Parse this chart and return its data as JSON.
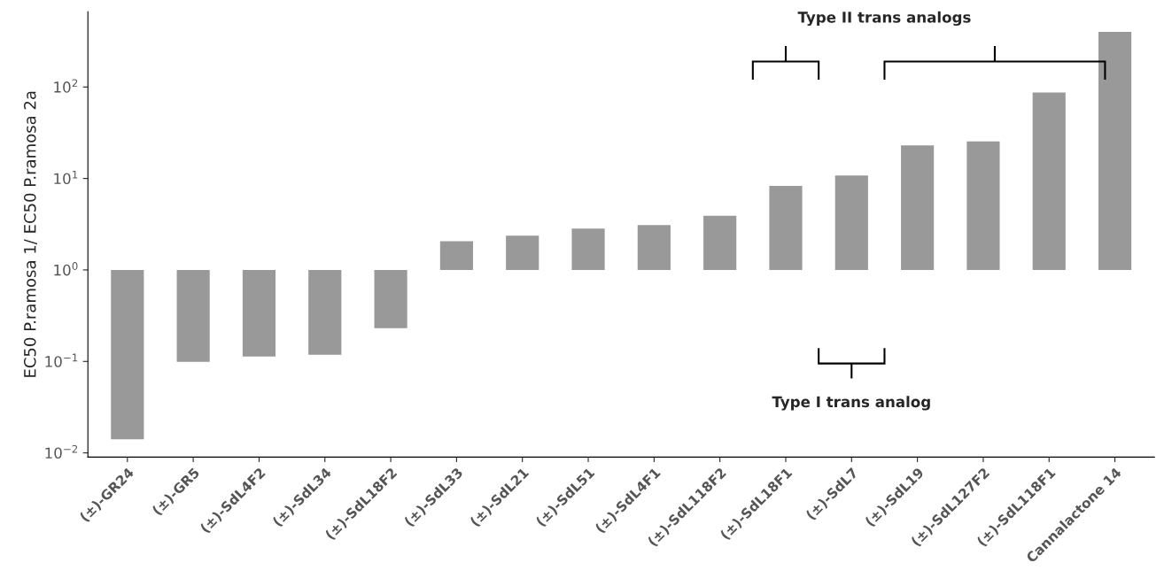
{
  "chart_data": {
    "type": "bar",
    "ylabel": "EC50 P.ramosa 1/ EC50 P.ramosa 2a",
    "categories": [
      "(±)-GR24",
      "(±)-GR5",
      "(±)-SdL4F2",
      "(±)-SdL34",
      "(±)-SdL18F2",
      "(±)-SdL33",
      "(±)-SdL21",
      "(±)-SdL51",
      "(±)-SdL4F1",
      "(±)-SdL118F2",
      "(±)-SdL18F1",
      "(±)-SdL7",
      "(±)-SdL19",
      "(±)-SdL127F2",
      "(±)-SdL118F1",
      "Cannalactone 14"
    ],
    "values": [
      -0.9859,
      -0.901,
      -0.887,
      -0.882,
      -0.769,
      1.06,
      1.37,
      1.83,
      2.09,
      2.9,
      7.3,
      9.8,
      22,
      24.4,
      86,
      399
    ],
    "base": [
      1,
      1,
      1,
      1,
      1,
      1,
      1,
      1,
      1,
      1,
      1,
      1,
      1,
      1,
      1,
      1
    ],
    "color": "#999999",
    "log": true,
    "grid": false,
    "ylim": [
      0.009,
      665
    ],
    "yticks": [
      {
        "value": 0.01,
        "label": "10$^{−2}$"
      },
      {
        "value": 0.1,
        "label": "10$^{−1}$"
      },
      {
        "value": 1,
        "label": "10$^{0}$"
      },
      {
        "value": 10,
        "label": "10$^{1}$"
      },
      {
        "value": 100,
        "label": "10$^{2}$"
      }
    ],
    "annotations": [
      "Type II trans analogs",
      "Type I trans analog"
    ]
  }
}
